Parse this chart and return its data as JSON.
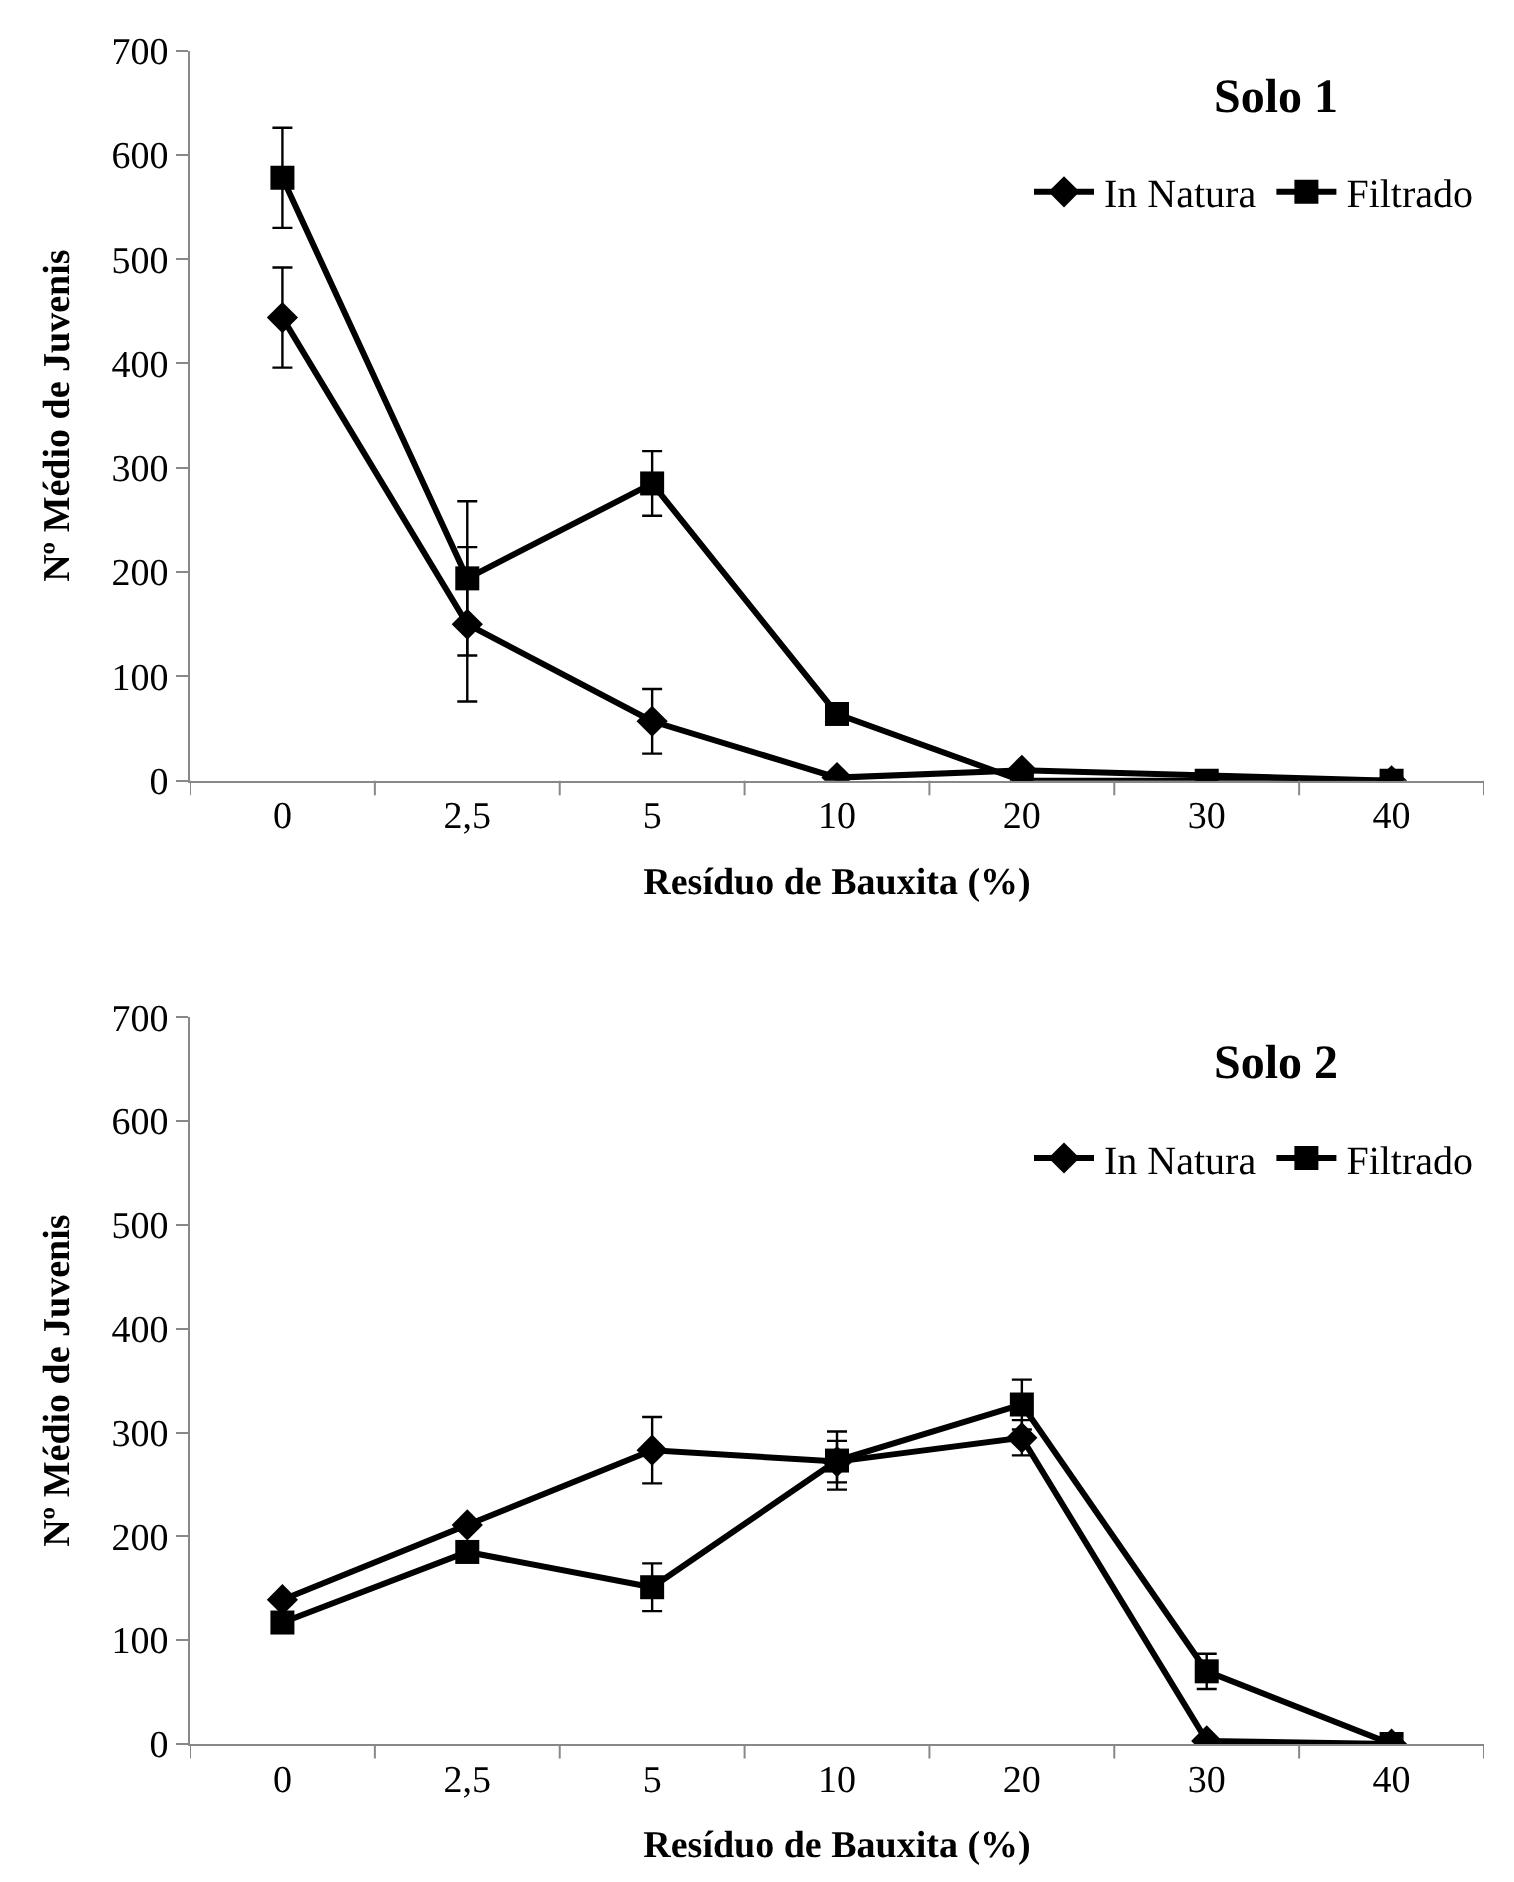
{
  "chart_data": [
    {
      "type": "line",
      "title": "Solo 1",
      "xlabel": "Resíduo de Bauxita (%)",
      "ylabel": "Nº Médio de Juvenis",
      "categories": [
        "0",
        "2,5",
        "5",
        "10",
        "20",
        "30",
        "40"
      ],
      "ylim": [
        0,
        700
      ],
      "yticks": [
        0,
        100,
        200,
        300,
        400,
        500,
        600,
        700
      ],
      "legend": "top right",
      "series": [
        {
          "name": "In Natura",
          "color": "#000000",
          "marker": "diamond",
          "values": [
            444,
            150,
            57,
            3,
            10,
            null,
            0
          ],
          "errors": [
            48,
            74,
            31,
            null,
            null,
            null,
            null
          ]
        },
        {
          "name": "Filtrado",
          "color": "#000000",
          "marker": "square",
          "values": [
            578,
            194,
            285,
            64,
            0,
            0,
            0
          ],
          "errors": [
            48,
            74,
            31,
            null,
            null,
            null,
            null
          ]
        }
      ]
    },
    {
      "type": "line",
      "title": "Solo 2",
      "xlabel": "Resíduo de Bauxita (%)",
      "ylabel": "Nº Médio de Juvenis",
      "categories": [
        "0",
        "2,5",
        "5",
        "10",
        "20",
        "30",
        "40"
      ],
      "ylim": [
        0,
        700
      ],
      "yticks": [
        0,
        100,
        200,
        300,
        400,
        500,
        600,
        700
      ],
      "legend": "top right",
      "series": [
        {
          "name": "In Natura",
          "color": "#000000",
          "marker": "diamond",
          "values": [
            139,
            211,
            283,
            272,
            295,
            3,
            0
          ],
          "errors": [
            null,
            null,
            32,
            20,
            17,
            null,
            null
          ]
        },
        {
          "name": "Filtrado",
          "color": "#000000",
          "marker": "square",
          "values": [
            117,
            185,
            151,
            273,
            327,
            70,
            0
          ],
          "errors": [
            null,
            null,
            23,
            28,
            24,
            17,
            null
          ]
        }
      ]
    }
  ]
}
